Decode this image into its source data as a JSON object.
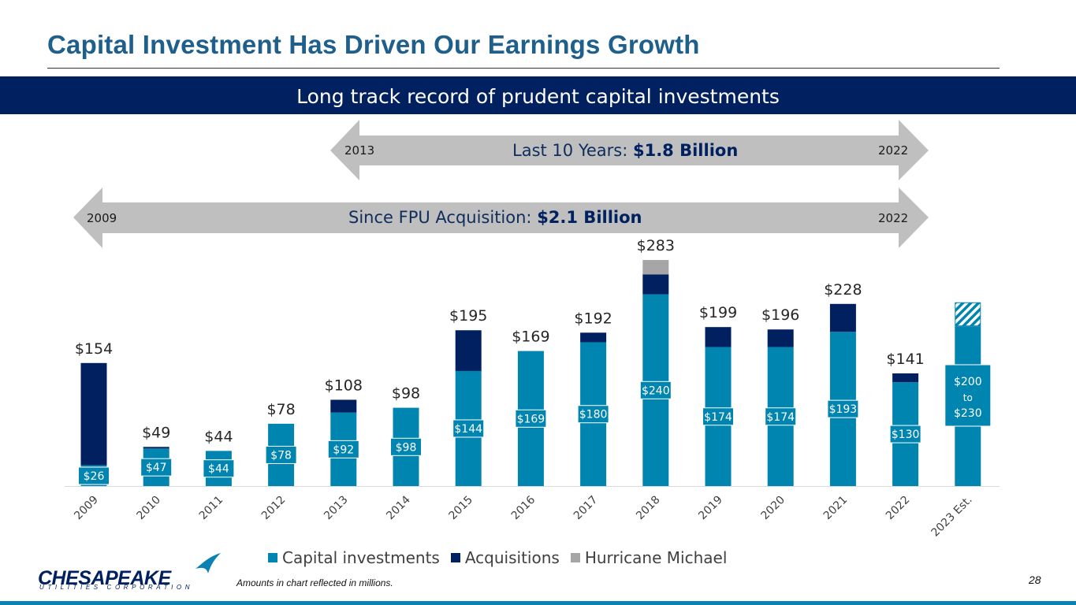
{
  "header": {
    "title": "Capital Investment Has Driven Our Earnings Growth",
    "banner": "Long track record of prudent capital investments"
  },
  "arrows": [
    {
      "start": "2013",
      "end": "2022",
      "label": "Last 10 Years: ",
      "value": "$1.8 Billion"
    },
    {
      "start": "2009",
      "end": "2022",
      "label": "Since FPU Acquisition: ",
      "value": "$2.1 Billion"
    }
  ],
  "chart_data": {
    "type": "bar",
    "stacked": true,
    "categories": [
      "2009",
      "2010",
      "2011",
      "2012",
      "2013",
      "2014",
      "2015",
      "2016",
      "2017",
      "2018",
      "2019",
      "2020",
      "2021",
      "2022",
      "2023 Est."
    ],
    "series": [
      {
        "name": "Capital investments",
        "values": [
          26,
          47,
          44,
          78,
          92,
          98,
          144,
          169,
          180,
          240,
          174,
          174,
          193,
          130,
          200
        ],
        "color": "#0084b0"
      },
      {
        "name": "Acquisitions",
        "values": [
          128,
          2,
          0,
          0,
          16,
          0,
          51,
          0,
          12,
          25,
          25,
          22,
          35,
          11,
          0
        ],
        "color": "#002060"
      },
      {
        "name": "Hurricane Michael",
        "values": [
          0,
          0,
          0,
          0,
          0,
          0,
          0,
          0,
          0,
          18,
          0,
          0,
          0,
          0,
          0
        ],
        "color": "#a6a6a6"
      }
    ],
    "estimate_range": {
      "category": "2023 Est.",
      "low": 200,
      "high": 230
    },
    "inner_labels": [
      "$26",
      "$47",
      "$44",
      "$78",
      "$92",
      "$98",
      "$144",
      "$169",
      "$180",
      "$240",
      "$174",
      "$174",
      "$193",
      "$130"
    ],
    "estimate_label": [
      "$200",
      "to",
      "$230"
    ],
    "total_labels": [
      "$154",
      "$49",
      "$44",
      "$78",
      "$108",
      "$98",
      "$195",
      "$169",
      "$192",
      "$283",
      "$199",
      "$196",
      "$228",
      "$141",
      ""
    ],
    "legend_position": "bottom",
    "ylim": [
      0,
      300
    ]
  },
  "footer": {
    "note": "Amounts in chart reflected in millions.",
    "page": "28",
    "logo_main": "CHESAPEAKE",
    "logo_sub": "UTILITIES CORPORATION"
  }
}
